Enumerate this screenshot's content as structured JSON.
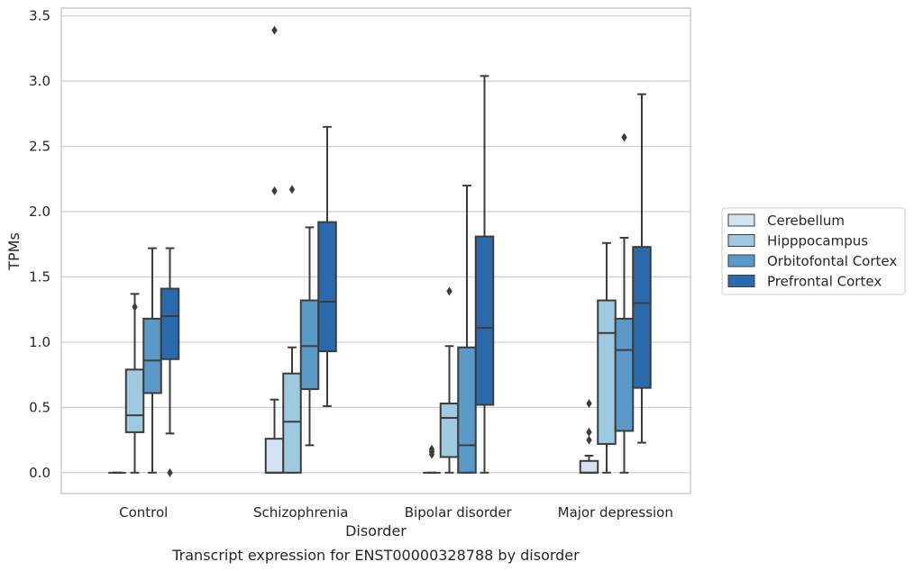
{
  "caption": "Transcript expression for ENST00000328788 by disorder",
  "chart_data": {
    "type": "box",
    "title": "",
    "xlabel": "Disorder",
    "ylabel": "TPMs",
    "ylim": [
      -0.16,
      3.56
    ],
    "yticks": [
      0.0,
      0.5,
      1.0,
      1.5,
      2.0,
      2.5,
      3.0,
      3.5
    ],
    "ytick_labels": [
      "0.0",
      "0.5",
      "1.0",
      "1.5",
      "2.0",
      "2.5",
      "3.0",
      "3.5"
    ],
    "grid": "horizontal",
    "legend_position": "right",
    "categories": [
      "Control",
      "Schizophrenia",
      "Bipolar disorder",
      "Major depression"
    ],
    "series": [
      {
        "name": "Cerebellum",
        "color": "#d4e3f3",
        "boxes": [
          {
            "whislo": 0.0,
            "q1": 0.0,
            "med": 0.0,
            "q3": 0.0,
            "whishi": 0.0,
            "fliers": []
          },
          {
            "whislo": 0.0,
            "q1": 0.0,
            "med": 0.0,
            "q3": 0.26,
            "whishi": 0.56,
            "fliers": [
              3.39,
              2.16
            ]
          },
          {
            "whislo": 0.0,
            "q1": 0.0,
            "med": 0.0,
            "q3": 0.0,
            "whishi": 0.0,
            "fliers": [
              0.14,
              0.16,
              0.18
            ]
          },
          {
            "whislo": 0.0,
            "q1": 0.0,
            "med": 0.0,
            "q3": 0.09,
            "whishi": 0.13,
            "fliers": [
              0.25,
              0.31,
              0.53
            ]
          }
        ]
      },
      {
        "name": "Hipppocampus",
        "color": "#9fc8e1",
        "boxes": [
          {
            "whislo": 0.0,
            "q1": 0.31,
            "med": 0.44,
            "q3": 0.79,
            "whishi": 1.37,
            "fliers": [
              1.27
            ]
          },
          {
            "whislo": 0.0,
            "q1": 0.0,
            "med": 0.39,
            "q3": 0.76,
            "whishi": 0.96,
            "fliers": [
              2.17
            ]
          },
          {
            "whislo": 0.0,
            "q1": 0.12,
            "med": 0.42,
            "q3": 0.53,
            "whishi": 0.97,
            "fliers": [
              1.39
            ]
          },
          {
            "whislo": 0.0,
            "q1": 0.22,
            "med": 1.07,
            "q3": 1.32,
            "whishi": 1.76,
            "fliers": []
          }
        ]
      },
      {
        "name": "Orbitofontal Cortex",
        "color": "#5b9ac8",
        "boxes": [
          {
            "whislo": 0.0,
            "q1": 0.61,
            "med": 0.86,
            "q3": 1.18,
            "whishi": 1.72,
            "fliers": []
          },
          {
            "whislo": 0.21,
            "q1": 0.64,
            "med": 0.97,
            "q3": 1.32,
            "whishi": 1.88,
            "fliers": []
          },
          {
            "whislo": 0.0,
            "q1": 0.0,
            "med": 0.21,
            "q3": 0.96,
            "whishi": 2.2,
            "fliers": []
          },
          {
            "whislo": 0.0,
            "q1": 0.32,
            "med": 0.94,
            "q3": 1.18,
            "whishi": 1.8,
            "fliers": [
              2.57
            ]
          }
        ]
      },
      {
        "name": "Prefrontal Cortex",
        "color": "#2a69ab",
        "boxes": [
          {
            "whislo": 0.3,
            "q1": 0.87,
            "med": 1.2,
            "q3": 1.41,
            "whishi": 1.72,
            "fliers": [
              0.0
            ]
          },
          {
            "whislo": 0.51,
            "q1": 0.93,
            "med": 1.31,
            "q3": 1.92,
            "whishi": 2.65,
            "fliers": []
          },
          {
            "whislo": 0.0,
            "q1": 0.52,
            "med": 1.11,
            "q3": 1.81,
            "whishi": 3.04,
            "fliers": []
          },
          {
            "whislo": 0.23,
            "q1": 0.65,
            "med": 1.3,
            "q3": 1.73,
            "whishi": 2.9,
            "fliers": []
          }
        ]
      }
    ]
  }
}
